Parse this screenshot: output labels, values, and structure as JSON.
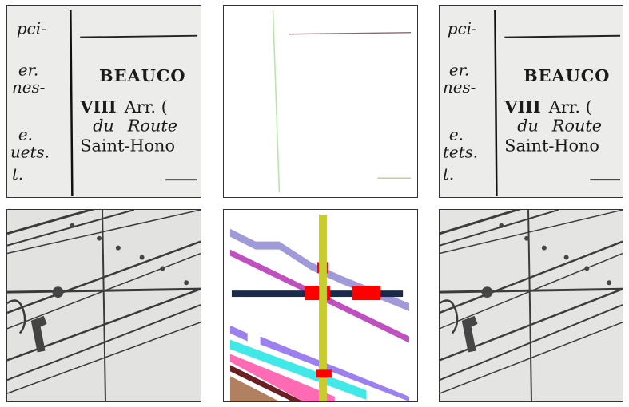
{
  "grid": {
    "columns": 3,
    "rows": 2,
    "row_1": {
      "scan_left": {
        "lines": [
          "pci-",
          "er.",
          "nes-",
          "e.",
          "uets.",
          "t.",
          "BEAUCO",
          "VIII",
          "Arr. (",
          "du",
          "Route",
          "Saint-Hono"
        ]
      },
      "line_mask": {
        "line_colors": [
          "#b5e8a8",
          "#8a6a72",
          "#b8c89a"
        ]
      },
      "scan_right": {
        "lines": [
          "pci-",
          "er.",
          "nes-",
          "e.",
          "tets.",
          "t.",
          "BEAUCO",
          "VIII",
          "Arr. (",
          "du",
          "Route",
          "Saint-Hono"
        ]
      }
    },
    "row_2": {
      "map_left": {
        "style": "grayscale-scan"
      },
      "segmentation": {
        "colors": [
          "#c8cc30",
          "#a09ad8",
          "#c050c0",
          "#1a2a48",
          "#ff0000",
          "#9d80f0",
          "#40e8e8",
          "#ff6ab4",
          "#6a2020",
          "#b08060"
        ]
      },
      "map_right": {
        "style": "grayscale-reconstruction"
      }
    }
  }
}
